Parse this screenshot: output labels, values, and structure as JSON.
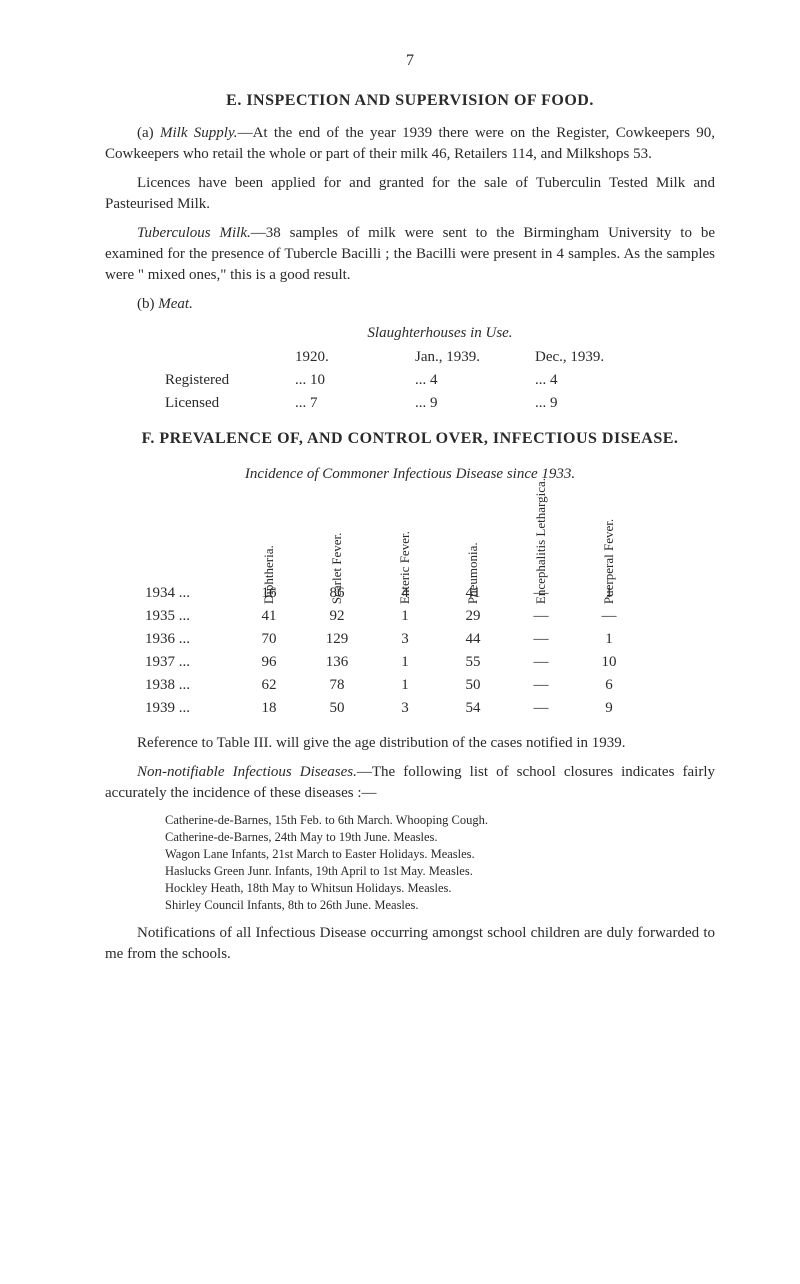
{
  "pageNumber": "7",
  "sectionE": {
    "heading": "E.  INSPECTION AND SUPERVISION OF FOOD.",
    "para1_prefix": "(a)  ",
    "para1_italic": "Milk Supply.",
    "para1_rest": "—At the end of the year 1939 there were on the Register, Cowkeepers 90, Cowkeepers who retail the whole or part of their milk 46, Retailers 114, and Milkshops 53.",
    "para2": "Licences have been applied for and granted for the sale of Tuberculin Tested Milk and Pasteurised Milk.",
    "para3_italic": "Tuberculous Milk.",
    "para3_rest": "—38 samples of milk were sent to the Birmingham University to be examined for the presence of Tubercle Bacilli ; the Bacilli were present in 4 samples.  As the samples were \" mixed ones,\" this is a good result.",
    "para4_prefix": "(b)  ",
    "para4_italic": "Meat.",
    "slaughter": {
      "title": "Slaughterhouses in Use.",
      "header_year1": "1920.",
      "header_year2": "Jan., 1939.",
      "header_year3": "Dec., 1939.",
      "rows": [
        {
          "label": "Registered",
          "c1": "...   10",
          "c2": "...       4",
          "c3": "...      4"
        },
        {
          "label": "Licensed",
          "c1": "...    7",
          "c2": "...       9",
          "c3": "...      9"
        }
      ]
    }
  },
  "sectionF": {
    "heading": "F.  PREVALENCE OF, AND CONTROL OVER, INFECTIOUS DISEASE.",
    "incidenceTitle": "Incidence of Commoner Infectious Disease since 1933.",
    "headers": [
      "Diphtheria.",
      "Scarlet Fever.",
      "Enteric Fever.",
      "Pneumonia.",
      "Encephalitis Lethargica.",
      "Puerperal Fever."
    ],
    "rows": [
      {
        "year": "1934  ...",
        "vals": [
          "16",
          "86",
          "4",
          "41",
          "—",
          "1"
        ]
      },
      {
        "year": "1935  ...",
        "vals": [
          "41",
          "92",
          "1",
          "29",
          "—",
          "—"
        ]
      },
      {
        "year": "1936  ...",
        "vals": [
          "70",
          "129",
          "3",
          "44",
          "—",
          "1"
        ]
      },
      {
        "year": "1937  ...",
        "vals": [
          "96",
          "136",
          "1",
          "55",
          "—",
          "10"
        ]
      },
      {
        "year": "1938  ...",
        "vals": [
          "62",
          "78",
          "1",
          "50",
          "—",
          "6"
        ]
      },
      {
        "year": "1939  ...",
        "vals": [
          "18",
          "50",
          "3",
          "54",
          "—",
          "9"
        ]
      }
    ],
    "refPara": "Reference to Table III. will give the age distribution of the cases notified in 1939.",
    "nonNotif_italic": "Non-notifiable Infectious Diseases.",
    "nonNotif_rest": "—The following list of school closures indicates fairly accurately the incidence of these diseases :—",
    "closures": [
      "Catherine-de-Barnes, 15th Feb. to 6th March.   Whooping Cough.",
      "Catherine-de-Barnes, 24th May to 19th June.    Measles.",
      "Wagon Lane Infants, 21st March to Easter Holidays.    Measles.",
      "Haslucks Green Junr. Infants, 19th April to 1st May.    Measles.",
      "Hockley Heath, 18th May to Whitsun Holidays.    Measles.",
      "Shirley Council Infants, 8th to 26th June.    Measles."
    ],
    "finalPara": "Notifications of all Infectious Disease occurring amongst school children are duly forwarded to me from the schools."
  }
}
